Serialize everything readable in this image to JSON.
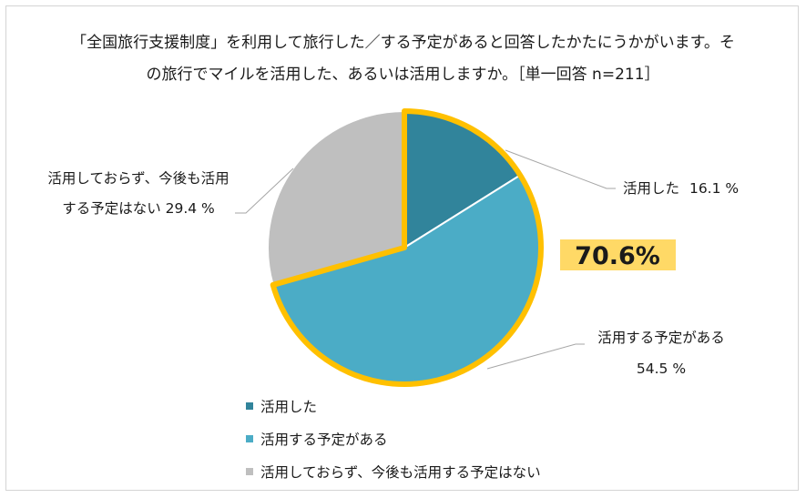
{
  "chart_data": {
    "type": "pie",
    "title_lines": [
      "「全国旅行支援制度」を利用して旅行した／する予定があると回答したかたにうかがいます。そ",
      "の旅行でマイルを活用した、あるいは活用しますか。［単一回答 n=211］"
    ],
    "slices": [
      {
        "label": "活用した",
        "value": 16.1,
        "value_text": "16.1 %",
        "color": "#31849b"
      },
      {
        "label": "活用する予定がある",
        "value": 54.5,
        "value_text": "54.5 %",
        "color": "#4bacc6"
      },
      {
        "label": "活用しておらず、今後も活用する予定はない",
        "value": 29.4,
        "value_text": "29.4 %",
        "color": "#bfbfbf"
      }
    ],
    "callout": {
      "text": "70.6%",
      "highlight_color": "#ffc000",
      "box_color": "#ffd966"
    },
    "slice_labels": [
      {
        "line1": "活用した",
        "line2": "16.1 %"
      },
      {
        "line1": "活用する予定がある",
        "line2": "54.5 %"
      },
      {
        "line1": "活用しておらず、今後も活用",
        "line2": "する予定はない 29.4 %"
      }
    ],
    "legend": [
      {
        "label": "活用した",
        "color": "#31849b"
      },
      {
        "label": "活用する予定がある",
        "color": "#4bacc6"
      },
      {
        "label": "活用しておらず、今後も活用する予定はない",
        "color": "#bfbfbf"
      }
    ]
  }
}
